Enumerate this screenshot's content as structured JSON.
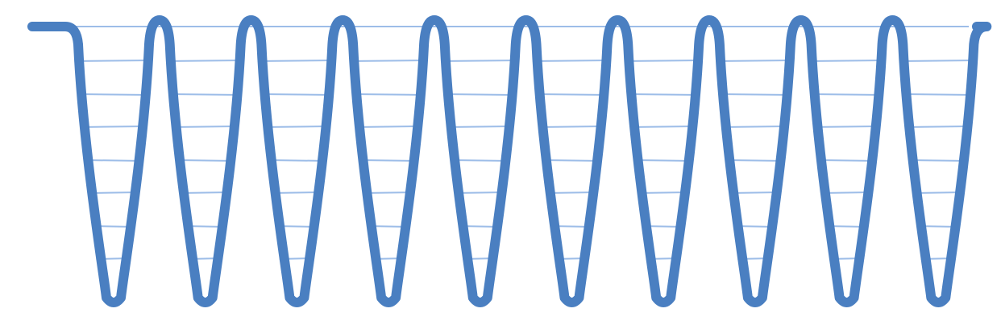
{
  "diagram": {
    "type": "strip-wells",
    "well_count": 10,
    "graduation_lines_per_well": 7,
    "colors": {
      "outline": "#4a7fc1",
      "graduation": "#9dbde8",
      "background": "#ffffff"
    }
  }
}
